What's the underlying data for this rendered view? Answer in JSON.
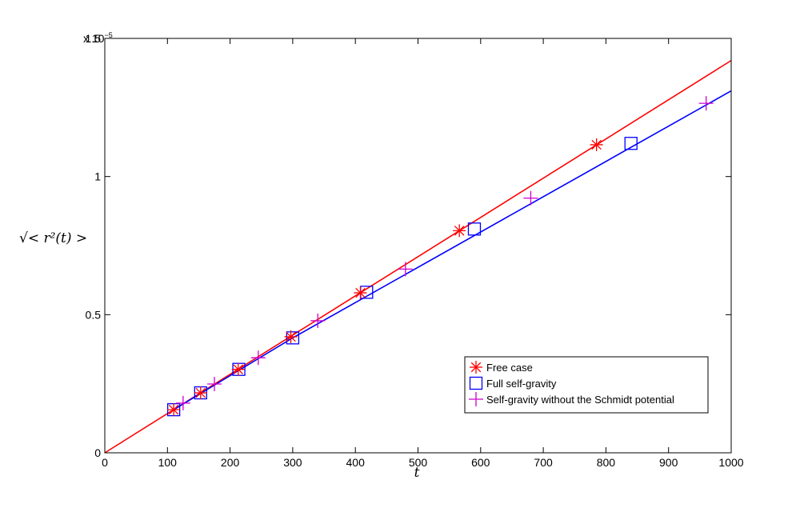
{
  "chart_data": {
    "type": "line",
    "xlabel": "t",
    "ylabel": "√< r²(t) >",
    "xlim": [
      0,
      1000
    ],
    "ylim": [
      0,
      1.5e-05
    ],
    "y_exponent_label": "x 10",
    "y_exponent": "−5",
    "xticks": [
      0,
      100,
      200,
      300,
      400,
      500,
      600,
      700,
      800,
      900,
      1000
    ],
    "xtick_labels": [
      "0",
      "100",
      "200",
      "300",
      "400",
      "500",
      "600",
      "700",
      "800",
      "900",
      "1000"
    ],
    "yticks": [
      0,
      5e-06,
      1e-05,
      1.5e-05
    ],
    "ytick_labels": [
      "0",
      "0.5",
      "1",
      "1.5"
    ],
    "grid": false,
    "legend_position": "lower-right",
    "series": [
      {
        "name": "Free case",
        "color": "#ff0000",
        "marker": "asterisk",
        "line": {
          "x": [
            0,
            1000
          ],
          "y": [
            0,
            1.42e-05
          ]
        },
        "points": {
          "x": [
            110,
            153,
            213,
            297,
            408,
            566,
            785
          ],
          "y": [
            1.56e-06,
            2.17e-06,
            3.02e-06,
            4.2e-06,
            5.79e-06,
            8.04e-06,
            1.115e-05
          ]
        }
      },
      {
        "name": "Full self-gravity",
        "color": "#0000ff",
        "marker": "square",
        "line": {
          "x": [
            110,
            300,
            1000
          ],
          "y": [
            1.56e-06,
            4.16e-06,
            1.31e-05
          ]
        },
        "points": {
          "x": [
            110,
            153,
            214,
            300,
            418,
            590,
            840
          ],
          "y": [
            1.56e-06,
            2.17e-06,
            3.02e-06,
            4.16e-06,
            5.81e-06,
            8.1e-06,
            1.12e-05
          ]
        }
      },
      {
        "name": "Self-gravity without the Schmidt potential",
        "color": "#cc00cc",
        "marker": "plus",
        "line": null,
        "points": {
          "x": [
            125,
            175,
            245,
            340,
            480,
            680,
            960
          ],
          "y": [
            1.8e-06,
            2.49e-06,
            3.44e-06,
            4.78e-06,
            6.65e-06,
            9.22e-06,
            1.265e-05
          ]
        }
      }
    ]
  }
}
